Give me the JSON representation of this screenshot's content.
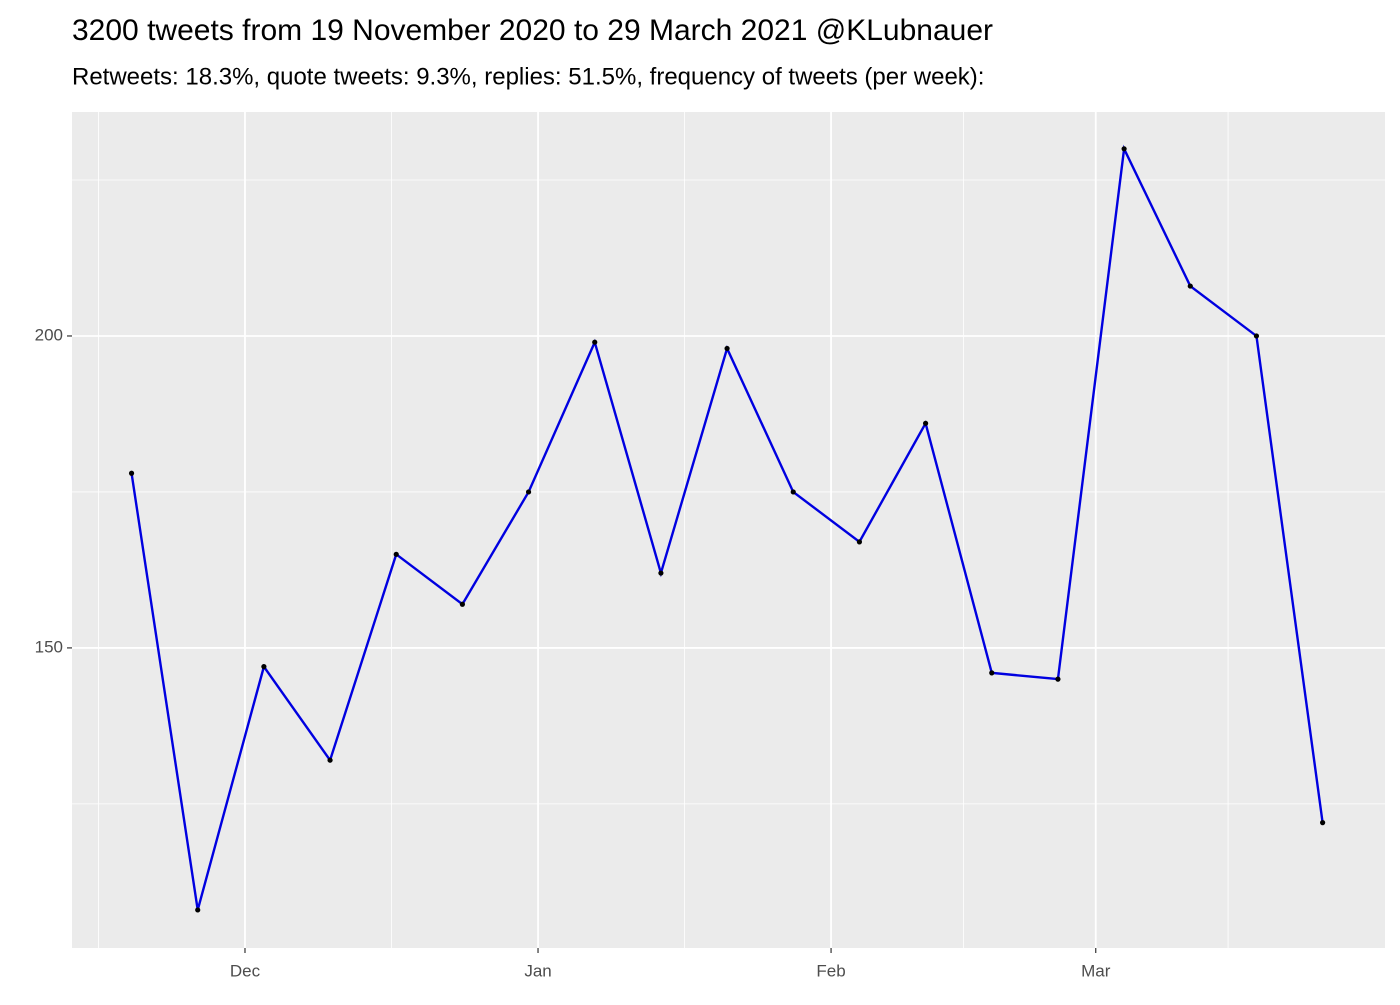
{
  "chart_data": {
    "type": "line",
    "title": "3200 tweets from 19 November 2020 to 29 March 2021 @KLubnauer",
    "subtitle": "Retweets: 18.3%, quote tweets: 9.3%, replies: 51.5%, frequency of tweets (per week):",
    "x": [
      -12,
      -5,
      2,
      9,
      16,
      23,
      30,
      37,
      44,
      51,
      58,
      65,
      72,
      79,
      86,
      93,
      100,
      107,
      114
    ],
    "series": [
      {
        "color": "#0000e0",
        "values": [
          178,
          108,
          147,
          132,
          165,
          157,
          175,
          199,
          162,
          198,
          175,
          167,
          186,
          146,
          145,
          230,
          208,
          200,
          122
        ]
      }
    ],
    "xlim": [
      -18.3,
      120.6
    ],
    "xticks": [
      {
        "value": 0,
        "label": "Dec"
      },
      {
        "value": 31,
        "label": "Jan"
      },
      {
        "value": 62,
        "label": "Feb"
      },
      {
        "value": 90,
        "label": "Mar"
      }
    ],
    "ylim": [
      101.9,
      235.9
    ],
    "yticks": [
      150,
      200
    ],
    "grid": true
  }
}
